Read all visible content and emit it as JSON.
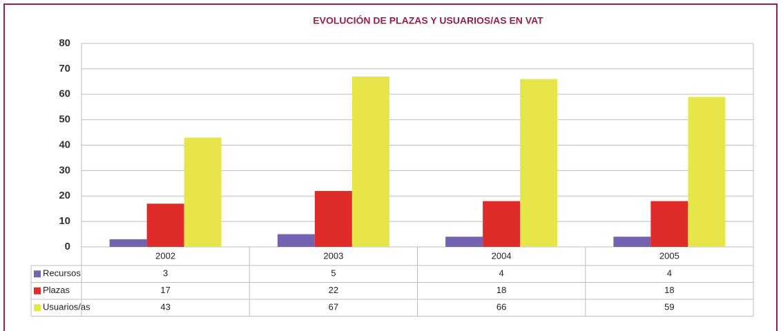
{
  "chart_data": {
    "type": "bar",
    "title": "EVOLUCIÓN DE PLAZAS Y USUARIOS/AS EN VAT",
    "categories": [
      "2002",
      "2003",
      "2004",
      "2005"
    ],
    "series": [
      {
        "name": "Recursos",
        "color": "#7463b1",
        "values": [
          3,
          5,
          4,
          4
        ]
      },
      {
        "name": "Plazas",
        "color": "#e02b2b",
        "values": [
          17,
          22,
          18,
          18
        ]
      },
      {
        "name": "Usuarios/as",
        "color": "#e6e64a",
        "values": [
          43,
          67,
          66,
          59
        ]
      }
    ],
    "ylim": [
      0,
      80
    ],
    "yticks": [
      0,
      10,
      20,
      30,
      40,
      50,
      60,
      70,
      80
    ],
    "grid": true
  }
}
